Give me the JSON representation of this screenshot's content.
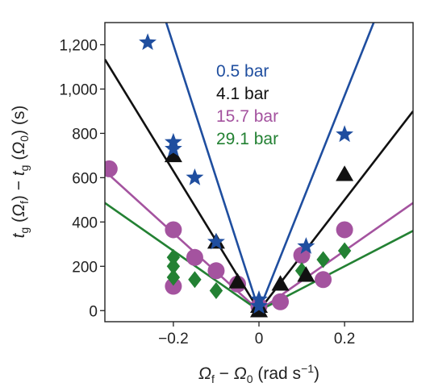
{
  "chart_data": {
    "type": "scatter",
    "xlabel": "Ωf − Ω0 (rad s−1)",
    "ylabel": "tg (Ωf) − tg (Ω0) (s)",
    "xlim": [
      -0.36,
      0.36
    ],
    "ylim": [
      -50,
      1300
    ],
    "x_ticks": [
      -0.2,
      0,
      0.2
    ],
    "x_tick_labels": [
      "−0.2",
      "0",
      "0.2"
    ],
    "y_ticks": [
      0,
      200,
      400,
      600,
      800,
      1000,
      1200
    ],
    "y_tick_labels": [
      "0",
      "200",
      "400",
      "600",
      "800",
      "1,000",
      "1,200"
    ],
    "grid": false,
    "legend_position": "top-center",
    "series": [
      {
        "name": "0.5 bar",
        "color": "#1f4e9f",
        "marker": "star",
        "fit": {
          "slope_neg": -6000,
          "slope_pos": 4850
        },
        "points": [
          [
            -0.26,
            1210
          ],
          [
            -0.2,
            760
          ],
          [
            -0.2,
            730
          ],
          [
            -0.15,
            600
          ],
          [
            -0.1,
            310
          ],
          [
            0,
            50
          ],
          [
            0,
            20
          ],
          [
            0.11,
            290
          ],
          [
            0.2,
            795
          ]
        ]
      },
      {
        "name": "4.1 bar",
        "color": "#111111",
        "marker": "triangle",
        "fit": {
          "slope_neg": -3150,
          "slope_pos": 2500
        },
        "points": [
          [
            -0.2,
            700
          ],
          [
            -0.1,
            310
          ],
          [
            -0.05,
            130
          ],
          [
            0,
            20
          ],
          [
            0,
            0
          ],
          [
            0.05,
            120
          ],
          [
            0.11,
            160
          ],
          [
            0.2,
            615
          ]
        ]
      },
      {
        "name": "15.7 bar",
        "color": "#a4539f",
        "marker": "circle",
        "fit": {
          "slope_neg": -1750,
          "slope_pos": 1350
        },
        "points": [
          [
            -0.35,
            640
          ],
          [
            -0.2,
            365
          ],
          [
            -0.2,
            110
          ],
          [
            -0.15,
            240
          ],
          [
            -0.1,
            180
          ],
          [
            -0.05,
            120
          ],
          [
            0,
            20
          ],
          [
            0.05,
            40
          ],
          [
            0.1,
            250
          ],
          [
            0.15,
            140
          ],
          [
            0.2,
            365
          ]
        ]
      },
      {
        "name": "29.1 bar",
        "color": "#238133",
        "marker": "diamond",
        "fit": {
          "slope_neg": -1350,
          "slope_pos": 1000
        },
        "points": [
          [
            -0.2,
            240
          ],
          [
            -0.2,
            200
          ],
          [
            -0.2,
            150
          ],
          [
            -0.15,
            140
          ],
          [
            -0.1,
            90
          ],
          [
            0,
            10
          ],
          [
            0.1,
            180
          ],
          [
            0.15,
            230
          ],
          [
            0.2,
            270
          ]
        ]
      }
    ]
  }
}
